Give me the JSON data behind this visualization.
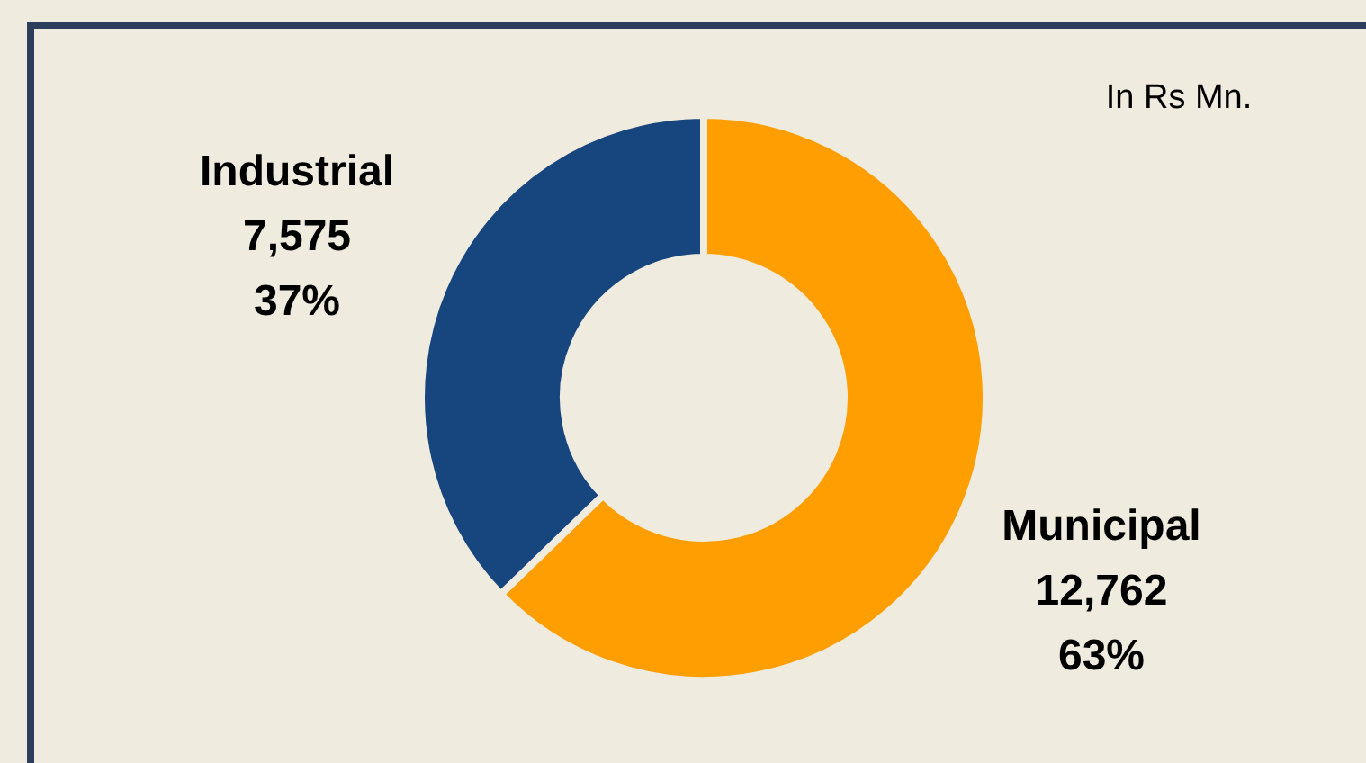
{
  "chart_data": {
    "type": "donut",
    "categories": [
      "Municipal",
      "Industrial"
    ],
    "values": [
      12762,
      7575
    ],
    "colors": [
      "#ff9e01",
      "#17467e"
    ],
    "value_labels": [
      "12,762\n63%",
      "7,575\n37%"
    ],
    "annotations": [
      "In Rs Mn."
    ]
  }
}
